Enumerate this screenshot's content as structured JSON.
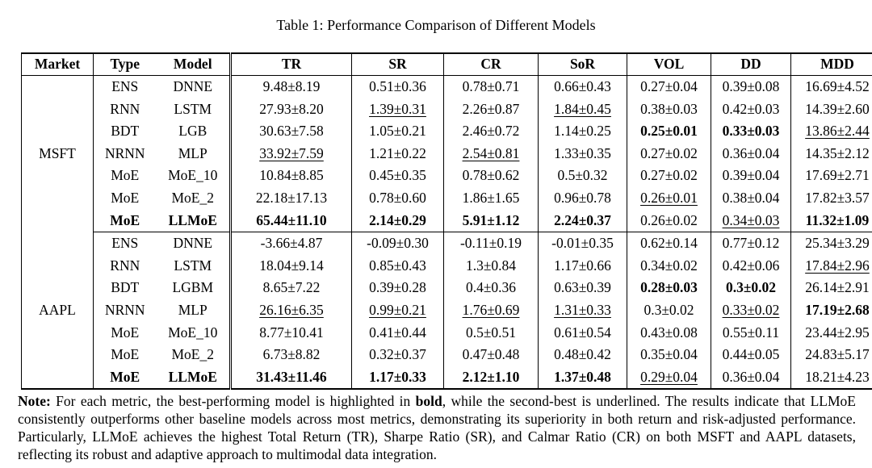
{
  "caption": "Table 1: Performance Comparison of Different Models",
  "headers": [
    "Market",
    "Type",
    "Model",
    "TR",
    "SR",
    "CR",
    "SoR",
    "VOL",
    "DD",
    "MDD"
  ],
  "groups": [
    {
      "market": "MSFT",
      "rows": [
        {
          "type": "ENS",
          "model": "DNNE",
          "values": [
            "9.48±8.19",
            "0.51±0.36",
            "0.78±0.71",
            "0.66±0.43",
            "0.27±0.04",
            "0.39±0.08",
            "16.69±4.52"
          ],
          "styles": [
            "",
            "",
            "",
            "",
            "",
            "",
            ""
          ],
          "label_style": ""
        },
        {
          "type": "RNN",
          "model": "LSTM",
          "values": [
            "27.93±8.20",
            "1.39±0.31",
            "2.26±0.87",
            "1.84±0.45",
            "0.38±0.03",
            "0.42±0.03",
            "14.39±2.60"
          ],
          "styles": [
            "",
            "u",
            "",
            "u",
            "",
            "",
            ""
          ],
          "label_style": ""
        },
        {
          "type": "BDT",
          "model": "LGB",
          "values": [
            "30.63±7.58",
            "1.05±0.21",
            "2.46±0.72",
            "1.14±0.25",
            "0.25±0.01",
            "0.33±0.03",
            "13.86±2.44"
          ],
          "styles": [
            "",
            "",
            "",
            "",
            "b",
            "b",
            "u"
          ],
          "label_style": ""
        },
        {
          "type": "NRNN",
          "model": "MLP",
          "values": [
            "33.92±7.59",
            "1.21±0.22",
            "2.54±0.81",
            "1.33±0.35",
            "0.27±0.02",
            "0.36±0.04",
            "14.35±2.12"
          ],
          "styles": [
            "u",
            "",
            "u",
            "",
            "",
            "",
            ""
          ],
          "label_style": ""
        },
        {
          "type": "MoE",
          "model": "MoE_10",
          "values": [
            "10.84±8.85",
            "0.45±0.35",
            "0.78±0.62",
            "0.5±0.32",
            "0.27±0.02",
            "0.39±0.04",
            "17.69±2.71"
          ],
          "styles": [
            "",
            "",
            "",
            "",
            "",
            "",
            ""
          ],
          "label_style": ""
        },
        {
          "type": "MoE",
          "model": "MoE_2",
          "values": [
            "22.18±17.13",
            "0.78±0.60",
            "1.86±1.65",
            "0.96±0.78",
            "0.26±0.01",
            "0.38±0.04",
            "17.82±3.57"
          ],
          "styles": [
            "",
            "",
            "",
            "",
            "u",
            "",
            ""
          ],
          "label_style": ""
        },
        {
          "type": "MoE",
          "model": "LLMoE",
          "values": [
            "65.44±11.10",
            "2.14±0.29",
            "5.91±1.12",
            "2.24±0.37",
            "0.26±0.02",
            "0.34±0.03",
            "11.32±1.09"
          ],
          "styles": [
            "b",
            "b",
            "b",
            "b",
            "",
            "u",
            "b"
          ],
          "label_style": "b"
        }
      ]
    },
    {
      "market": "AAPL",
      "rows": [
        {
          "type": "ENS",
          "model": "DNNE",
          "values": [
            "-3.66±4.87",
            "-0.09±0.30",
            "-0.11±0.19",
            "-0.01±0.35",
            "0.62±0.14",
            "0.77±0.12",
            "25.34±3.29"
          ],
          "styles": [
            "",
            "",
            "",
            "",
            "",
            "",
            ""
          ],
          "label_style": ""
        },
        {
          "type": "RNN",
          "model": "LSTM",
          "values": [
            "18.04±9.14",
            "0.85±0.43",
            "1.3±0.84",
            "1.17±0.66",
            "0.34±0.02",
            "0.42±0.06",
            "17.84±2.96"
          ],
          "styles": [
            "",
            "",
            "",
            "",
            "",
            "",
            "u"
          ],
          "label_style": ""
        },
        {
          "type": "BDT",
          "model": "LGBM",
          "values": [
            "8.65±7.22",
            "0.39±0.28",
            "0.4±0.36",
            "0.63±0.39",
            "0.28±0.03",
            "0.3±0.02",
            "26.14±2.91"
          ],
          "styles": [
            "",
            "",
            "",
            "",
            "b",
            "b",
            ""
          ],
          "label_style": ""
        },
        {
          "type": "NRNN",
          "model": "MLP",
          "values": [
            "26.16±6.35",
            "0.99±0.21",
            "1.76±0.69",
            "1.31±0.33",
            "0.3±0.02",
            "0.33±0.02",
            "17.19±2.68"
          ],
          "styles": [
            "u",
            "u",
            "u",
            "u",
            "",
            "u",
            "b"
          ],
          "label_style": ""
        },
        {
          "type": "MoE",
          "model": "MoE_10",
          "values": [
            "8.77±10.41",
            "0.41±0.44",
            "0.5±0.51",
            "0.61±0.54",
            "0.43±0.08",
            "0.55±0.11",
            "23.44±2.95"
          ],
          "styles": [
            "",
            "",
            "",
            "",
            "",
            "",
            ""
          ],
          "label_style": ""
        },
        {
          "type": "MoE",
          "model": "MoE_2",
          "values": [
            "6.73±8.82",
            "0.32±0.37",
            "0.47±0.48",
            "0.48±0.42",
            "0.35±0.04",
            "0.44±0.05",
            "24.83±5.17"
          ],
          "styles": [
            "",
            "",
            "",
            "",
            "",
            "",
            ""
          ],
          "label_style": ""
        },
        {
          "type": "MoE",
          "model": "LLMoE",
          "values": [
            "31.43±11.46",
            "1.17±0.33",
            "2.12±1.10",
            "1.37±0.48",
            "0.29±0.04",
            "0.36±0.04",
            "18.21±4.23"
          ],
          "styles": [
            "b",
            "b",
            "b",
            "b",
            "u",
            "",
            ""
          ],
          "label_style": "b"
        }
      ]
    }
  ],
  "note": {
    "segments": [
      {
        "text": "Note:",
        "style": "b"
      },
      {
        "text": " For each metric, the best-performing model is highlighted in ",
        "style": ""
      },
      {
        "text": "bold",
        "style": "b"
      },
      {
        "text": ", while the second-best is underlined. The results indicate that LLMoE consistently outperforms other baseline models across most metrics, demonstrating its superiority in both return and risk-adjusted performance. Particularly, LLMoE achieves the highest Total Return (TR), Sharpe Ratio (SR), and Calmar Ratio (CR) on both MSFT and AAPL datasets, reflecting its robust and adaptive approach to multimodal data integration.",
        "style": ""
      }
    ]
  }
}
